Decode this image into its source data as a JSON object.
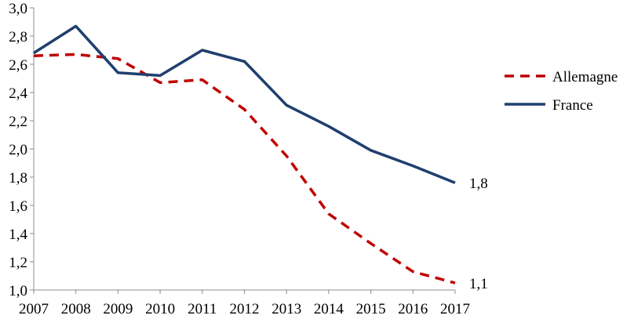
{
  "chart_data": {
    "type": "line",
    "title": "",
    "xlabel": "",
    "ylabel": "",
    "x": [
      "2007",
      "2008",
      "2009",
      "2010",
      "2011",
      "2012",
      "2013",
      "2014",
      "2015",
      "2016",
      "2017"
    ],
    "ylim": [
      1.0,
      3.0
    ],
    "yticks": [
      "1,0",
      "1,2",
      "1,4",
      "1,6",
      "1,8",
      "2,0",
      "2,2",
      "2,4",
      "2,6",
      "2,8",
      "3,0"
    ],
    "grid": false,
    "legend_position": "right",
    "series": [
      {
        "name": "Allemagne",
        "color": "#C00000",
        "style": "dashed",
        "values": [
          2.66,
          2.67,
          2.64,
          2.47,
          2.49,
          2.28,
          1.95,
          1.54,
          1.33,
          1.13,
          1.05
        ],
        "end_label": "1,1"
      },
      {
        "name": "France",
        "color": "#1F3F6E",
        "style": "solid",
        "values": [
          2.68,
          2.87,
          2.54,
          2.52,
          2.7,
          2.62,
          2.31,
          2.16,
          1.99,
          1.88,
          1.76
        ],
        "end_label": "1,8"
      }
    ]
  }
}
